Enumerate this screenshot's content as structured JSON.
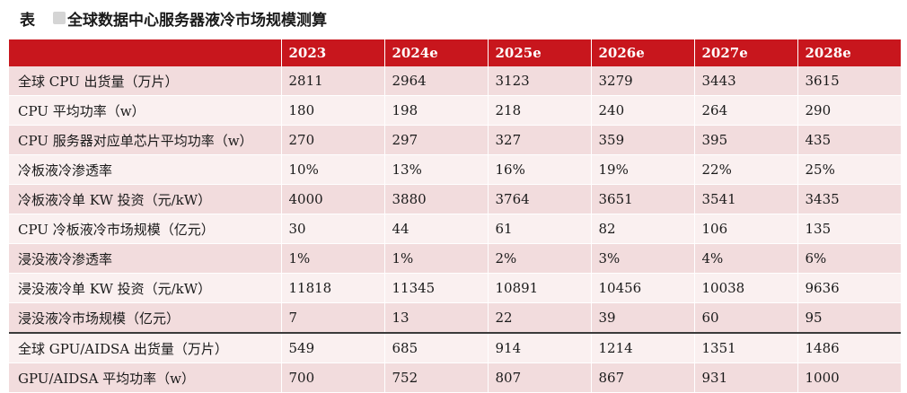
{
  "caption": {
    "label": "表",
    "title": "全球数据中心服务器液冷市场规模测算"
  },
  "table": {
    "headers": [
      "",
      "2023",
      "2024e",
      "2025e",
      "2026e",
      "2027e",
      "2028e"
    ],
    "rows": [
      [
        "全球 CPU 出货量（万片）",
        "2811",
        "2964",
        "3123",
        "3279",
        "3443",
        "3615"
      ],
      [
        "CPU 平均功率（w）",
        "180",
        "198",
        "218",
        "240",
        "264",
        "290"
      ],
      [
        "CPU 服务器对应单芯片平均功率（w）",
        "270",
        "297",
        "327",
        "359",
        "395",
        "435"
      ],
      [
        "冷板液冷渗透率",
        "10%",
        "13%",
        "16%",
        "19%",
        "22%",
        "25%"
      ],
      [
        "冷板液冷单 KW 投资（元/kW）",
        "4000",
        "3880",
        "3764",
        "3651",
        "3541",
        "3435"
      ],
      [
        "CPU 冷板液冷市场规模（亿元）",
        "30",
        "44",
        "61",
        "82",
        "106",
        "135"
      ],
      [
        "浸没液冷渗透率",
        "1%",
        "1%",
        "2%",
        "3%",
        "4%",
        "6%"
      ],
      [
        "浸没液冷单 KW 投资（元/kW）",
        "11818",
        "11345",
        "10891",
        "10456",
        "10038",
        "9636"
      ],
      [
        "浸没液冷市场规模（亿元）",
        "7",
        "13",
        "22",
        "39",
        "60",
        "95"
      ],
      [
        "全球 GPU/AIDSA 出货量（万片）",
        "549",
        "685",
        "914",
        "1214",
        "1351",
        "1486"
      ],
      [
        "GPU/AIDSA 平均功率（w）",
        "700",
        "752",
        "807",
        "867",
        "931",
        "1000"
      ]
    ]
  },
  "colors": {
    "header_bg": "#c8161d",
    "row_odd": "#f2dcdd",
    "row_even": "#faf0f0"
  }
}
